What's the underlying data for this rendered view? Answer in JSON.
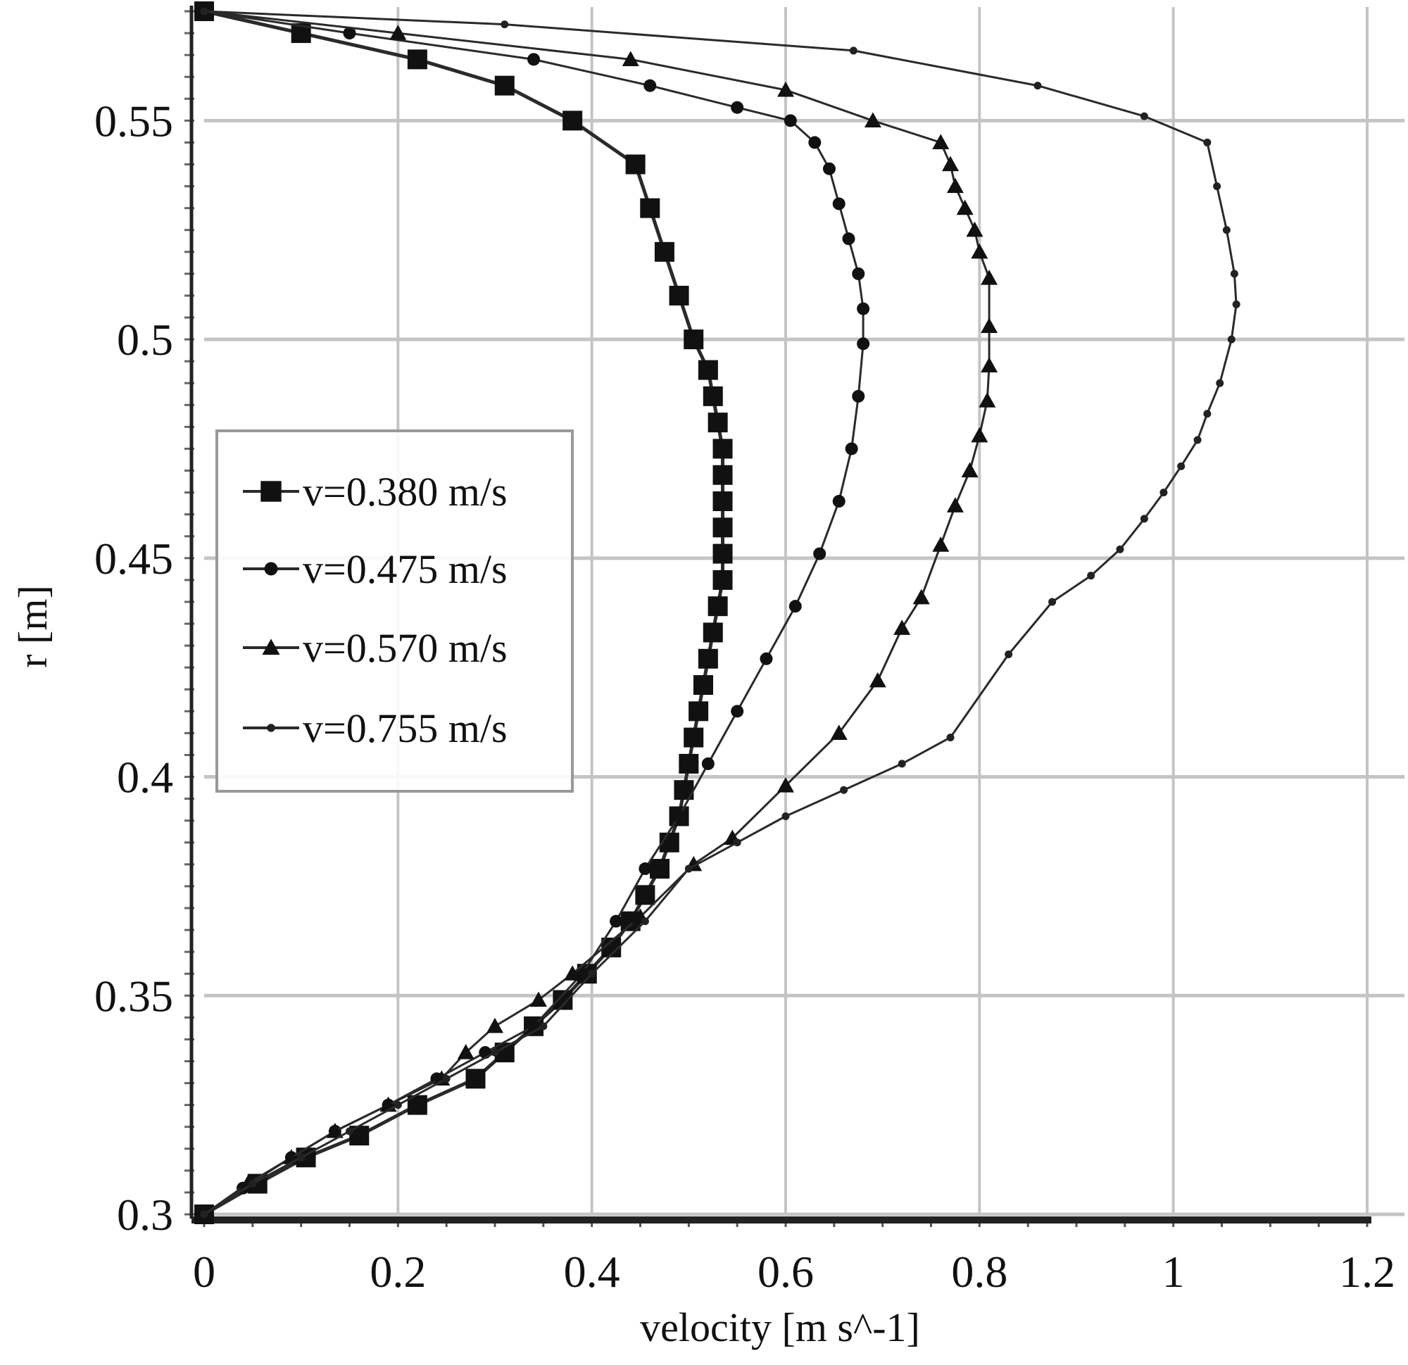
{
  "chart_data": {
    "type": "line",
    "title": "",
    "xlabel": "velocity [m s^-1]",
    "ylabel": "r [m]",
    "xlim": [
      0,
      1.2
    ],
    "ylim": [
      0.3,
      0.575
    ],
    "xticks": [
      "0",
      "0.2",
      "0.4",
      "0.6",
      "0.8",
      "1",
      "1.2"
    ],
    "yticks": [
      "0.3",
      "0.35",
      "0.4",
      "0.45",
      "0.5",
      "0.55"
    ],
    "grid": true,
    "legend_position": "middle-left",
    "series": [
      {
        "name": "v=0.380 m/s",
        "marker": "square",
        "x": [
          0,
          0.055,
          0.105,
          0.16,
          0.22,
          0.28,
          0.31,
          0.34,
          0.37,
          0.395,
          0.42,
          0.44,
          0.455,
          0.47,
          0.48,
          0.49,
          0.495,
          0.5,
          0.505,
          0.51,
          0.515,
          0.52,
          0.525,
          0.53,
          0.535,
          0.535,
          0.535,
          0.535,
          0.535,
          0.535,
          0.53,
          0.525,
          0.52,
          0.505,
          0.49,
          0.475,
          0.46,
          0.445,
          0.38,
          0.31,
          0.22,
          0.1,
          0
        ],
        "y": [
          0.3,
          0.307,
          0.313,
          0.318,
          0.325,
          0.331,
          0.337,
          0.343,
          0.349,
          0.355,
          0.361,
          0.367,
          0.373,
          0.379,
          0.385,
          0.391,
          0.397,
          0.403,
          0.409,
          0.415,
          0.421,
          0.427,
          0.433,
          0.439,
          0.445,
          0.451,
          0.457,
          0.463,
          0.469,
          0.475,
          0.481,
          0.487,
          0.493,
          0.5,
          0.51,
          0.52,
          0.53,
          0.54,
          0.55,
          0.558,
          0.564,
          0.57,
          0.575
        ]
      },
      {
        "name": "v=0.475 m/s",
        "marker": "circle",
        "x": [
          0,
          0.04,
          0.09,
          0.135,
          0.19,
          0.24,
          0.29,
          0.34,
          0.39,
          0.425,
          0.455,
          0.49,
          0.52,
          0.55,
          0.58,
          0.61,
          0.635,
          0.655,
          0.668,
          0.675,
          0.68,
          0.68,
          0.675,
          0.665,
          0.655,
          0.645,
          0.63,
          0.605,
          0.55,
          0.46,
          0.34,
          0.15,
          0
        ],
        "y": [
          0.3,
          0.306,
          0.313,
          0.319,
          0.325,
          0.331,
          0.337,
          0.343,
          0.355,
          0.367,
          0.379,
          0.391,
          0.403,
          0.415,
          0.427,
          0.439,
          0.451,
          0.463,
          0.475,
          0.487,
          0.499,
          0.507,
          0.515,
          0.523,
          0.531,
          0.539,
          0.545,
          0.55,
          0.553,
          0.558,
          0.564,
          0.57,
          0.575
        ]
      },
      {
        "name": "v=0.570 m/s",
        "marker": "triangle",
        "x": [
          0,
          0.045,
          0.09,
          0.135,
          0.19,
          0.245,
          0.27,
          0.3,
          0.345,
          0.38,
          0.45,
          0.505,
          0.545,
          0.6,
          0.655,
          0.695,
          0.72,
          0.74,
          0.76,
          0.775,
          0.79,
          0.8,
          0.808,
          0.81,
          0.81,
          0.81,
          0.8,
          0.795,
          0.785,
          0.775,
          0.77,
          0.76,
          0.69,
          0.6,
          0.44,
          0.2,
          0
        ],
        "y": [
          0.3,
          0.307,
          0.313,
          0.319,
          0.325,
          0.331,
          0.337,
          0.343,
          0.349,
          0.355,
          0.368,
          0.38,
          0.386,
          0.398,
          0.41,
          0.422,
          0.434,
          0.441,
          0.453,
          0.462,
          0.47,
          0.478,
          0.486,
          0.494,
          0.503,
          0.514,
          0.52,
          0.525,
          0.53,
          0.535,
          0.54,
          0.545,
          0.55,
          0.557,
          0.564,
          0.57,
          0.575
        ]
      },
      {
        "name": "v=0.755 m/s",
        "marker": "dot",
        "x": [
          0,
          0.05,
          0.1,
          0.15,
          0.2,
          0.25,
          0.3,
          0.35,
          0.4,
          0.455,
          0.5,
          0.55,
          0.6,
          0.66,
          0.72,
          0.77,
          0.83,
          0.875,
          0.915,
          0.945,
          0.97,
          0.99,
          1.008,
          1.025,
          1.035,
          1.048,
          1.06,
          1.065,
          1.063,
          1.055,
          1.045,
          1.035,
          0.97,
          0.86,
          0.67,
          0.31,
          0
        ],
        "y": [
          0.3,
          0.307,
          0.313,
          0.319,
          0.325,
          0.331,
          0.337,
          0.343,
          0.355,
          0.367,
          0.379,
          0.385,
          0.391,
          0.397,
          0.403,
          0.409,
          0.428,
          0.44,
          0.446,
          0.452,
          0.459,
          0.465,
          0.471,
          0.477,
          0.483,
          0.49,
          0.5,
          0.508,
          0.515,
          0.525,
          0.535,
          0.545,
          0.551,
          0.558,
          0.566,
          0.572,
          0.575
        ]
      }
    ]
  }
}
